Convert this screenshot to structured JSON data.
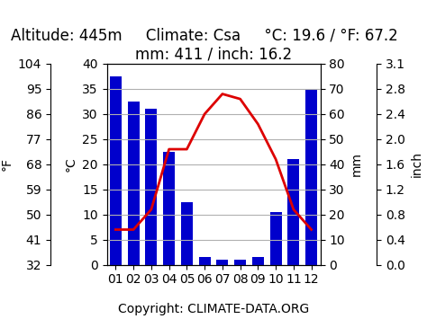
{
  "chart_data": {
    "type": "bar",
    "title": "Altitude: 445m     Climate: Csa     °C: 19.6 / °F: 67.2     mm: 411 / inch: 16.2",
    "categories": [
      "01",
      "02",
      "03",
      "04",
      "05",
      "06",
      "07",
      "08",
      "09",
      "10",
      "11",
      "12"
    ],
    "series": [
      {
        "type": "bar",
        "axis": "y2",
        "color": "#0000cc",
        "values": [
          75,
          65,
          62,
          45,
          25,
          3,
          2,
          2,
          3,
          21,
          42,
          70
        ]
      },
      {
        "type": "line",
        "color": "#dd0000",
        "values": [
          7,
          7,
          11,
          23,
          23,
          30,
          34,
          33,
          28,
          21,
          11,
          7
        ]
      }
    ],
    "ylabel": "°C",
    "ylim": [
      0,
      40
    ],
    "yticks": [
      0,
      5,
      10,
      15,
      20,
      25,
      30,
      35,
      40
    ],
    "y2label": "mm",
    "y2lim": [
      0,
      80
    ],
    "y2ticks": [
      0,
      10,
      20,
      30,
      40,
      50,
      60,
      70,
      80
    ],
    "y_alt_label": "°F",
    "y_alt_ticks": [
      {
        "value": 0,
        "label": "32"
      },
      {
        "value": 5,
        "label": "41"
      },
      {
        "value": 10,
        "label": "50"
      },
      {
        "value": 15,
        "label": "59"
      },
      {
        "value": 20,
        "label": "68"
      },
      {
        "value": 25,
        "label": "77"
      },
      {
        "value": 30,
        "label": "86"
      },
      {
        "value": 35,
        "label": "95"
      },
      {
        "value": 40,
        "label": "104"
      }
    ],
    "y2_alt_label": "inch",
    "y2_alt_ticks": [
      {
        "value": 0,
        "label": "0.0"
      },
      {
        "value": 10,
        "label": "0.4"
      },
      {
        "value": 20,
        "label": "0.8"
      },
      {
        "value": 30,
        "label": "1.2"
      },
      {
        "value": 40,
        "label": "1.6"
      },
      {
        "value": 50,
        "label": "2.0"
      },
      {
        "value": 60,
        "label": "2.4"
      },
      {
        "value": 70,
        "label": "2.8"
      },
      {
        "value": 80,
        "label": "3.1"
      }
    ],
    "annotations": [
      "Copyright: CLIMATE-DATA.ORG"
    ],
    "grid": true
  }
}
